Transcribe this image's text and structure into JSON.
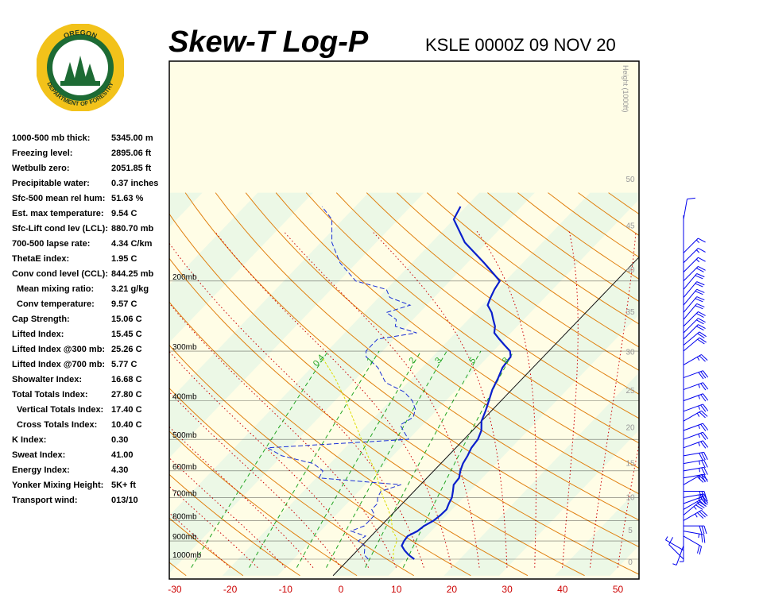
{
  "header": {
    "title": "Skew-T Log-P",
    "station": "KSLE 0000Z 09 NOV 20"
  },
  "logo": {
    "top_text": "OREGON",
    "bottom_text": "DEPARTMENT OF FORESTRY",
    "ring_color": "#f2c21a",
    "inner_color": "#1d6b34"
  },
  "stats": [
    {
      "label": "1000-500 mb thick:",
      "value": "5345.00 m",
      "indent": false
    },
    {
      "label": "Freezing level:",
      "value": "2895.06 ft",
      "indent": false
    },
    {
      "label": "Wetbulb zero:",
      "value": "2051.85 ft",
      "indent": false
    },
    {
      "label": "Precipitable water:",
      "value": "0.37 inches",
      "indent": false
    },
    {
      "label": "Sfc-500 mean rel hum:",
      "value": "51.63 %",
      "indent": false
    },
    {
      "label": "Est. max temperature:",
      "value": "9.54 C",
      "indent": false
    },
    {
      "label": "Sfc-Lift cond lev (LCL):",
      "value": "880.70 mb",
      "indent": false
    },
    {
      "label": "700-500 lapse rate:",
      "value": "4.34 C/km",
      "indent": false
    },
    {
      "label": "ThetaE index:",
      "value": "1.95 C",
      "indent": false
    },
    {
      "label": "Conv cond level (CCL):",
      "value": "844.25 mb",
      "indent": false
    },
    {
      "label": "Mean mixing ratio:",
      "value": "3.21 g/kg",
      "indent": true
    },
    {
      "label": "Conv temperature:",
      "value": "9.57 C",
      "indent": true
    },
    {
      "label": "Cap Strength:",
      "value": "15.06 C",
      "indent": false
    },
    {
      "label": "Lifted Index:",
      "value": "15.45 C",
      "indent": false
    },
    {
      "label": "Lifted Index @300 mb:",
      "value": "25.26 C",
      "indent": false
    },
    {
      "label": "Lifted Index @700 mb:",
      "value": "5.77 C",
      "indent": false
    },
    {
      "label": "Showalter Index:",
      "value": "16.68 C",
      "indent": false
    },
    {
      "label": "Total Totals Index:",
      "value": "27.80 C",
      "indent": false
    },
    {
      "label": "Vertical Totals Index:",
      "value": "17.40 C",
      "indent": true
    },
    {
      "label": "Cross Totals Index:",
      "value": "10.40 C",
      "indent": true
    },
    {
      "label": "K Index:",
      "value": "0.30",
      "indent": false
    },
    {
      "label": "Sweat Index:",
      "value": "41.00",
      "indent": false
    },
    {
      "label": "Energy Index:",
      "value": "4.30",
      "indent": false
    },
    {
      "label": "Yonker Mixing Height:",
      "value": "5K+ ft",
      "indent": false
    },
    {
      "label": "Transport wind:",
      "value": "013/10",
      "indent": false
    }
  ],
  "chart_data": {
    "type": "line",
    "title": "Skew-T Log-P",
    "xlabel": "",
    "ylabel": "",
    "x_ticks": [
      "-30",
      "-20",
      "-10",
      "0",
      "10",
      "20",
      "30",
      "40",
      "50"
    ],
    "x_tick_color": "#cc0000",
    "pressure_labels": [
      "200mb",
      "300mb",
      "400mb",
      "500mb",
      "600mb",
      "700mb",
      "800mb",
      "900mb",
      "1000mb"
    ],
    "height_axis_title": "Height (1000ft)",
    "height_ticks": [
      "0",
      "5",
      "10",
      "15",
      "20",
      "25",
      "30",
      "35",
      "40",
      "45",
      "50"
    ],
    "mixing_ratio_labels": [
      "0.4",
      "1",
      "2",
      "3",
      "5",
      "8"
    ],
    "colors": {
      "temperature": "#0a1fcc",
      "dewpoint": "#1a2fd6",
      "parcel": "#dddd00",
      "dry_adiabat": "#e08010",
      "moist_adiabat": "#cc0000",
      "mixing_ratio": "#22a522",
      "isobar": "#000000",
      "wind_barb": "#0000ee",
      "band_a": "#fffde6",
      "band_b": "#ecf8e6"
    },
    "series": [
      {
        "key": "temperature",
        "points": [
          [
            11.8,
            1000
          ],
          [
            10,
            975
          ],
          [
            8.5,
            950
          ],
          [
            7.2,
            925
          ],
          [
            6.8,
            900
          ],
          [
            6.6,
            875
          ],
          [
            7.5,
            850
          ],
          [
            7.8,
            825
          ],
          [
            8.6,
            800
          ],
          [
            8.9,
            775
          ],
          [
            9.0,
            750
          ],
          [
            8.4,
            725
          ],
          [
            7.9,
            700
          ],
          [
            7.0,
            675
          ],
          [
            6.0,
            650
          ],
          [
            5.8,
            625
          ],
          [
            4.8,
            600
          ],
          [
            4.0,
            575
          ],
          [
            3.5,
            550
          ],
          [
            2.8,
            525
          ],
          [
            2.5,
            500
          ],
          [
            1.6,
            475
          ],
          [
            0,
            450
          ],
          [
            -1.0,
            425
          ],
          [
            -2.2,
            400
          ],
          [
            -3.5,
            375
          ],
          [
            -4.5,
            350
          ],
          [
            -5.5,
            330
          ],
          [
            -5.9,
            310
          ],
          [
            -7.0,
            300
          ],
          [
            -9.0,
            290
          ],
          [
            -11.0,
            280
          ],
          [
            -13.0,
            270
          ],
          [
            -14.0,
            260
          ],
          [
            -15.5,
            250
          ],
          [
            -17.0,
            240
          ],
          [
            -19.0,
            230
          ],
          [
            -19.8,
            220
          ],
          [
            -20.5,
            210
          ],
          [
            -21.0,
            200
          ],
          [
            -27.0,
            180
          ],
          [
            -34.0,
            160
          ],
          [
            -40.0,
            140
          ],
          [
            -41.0,
            130
          ]
        ]
      },
      {
        "key": "dewpoint",
        "points": [
          [
            3.5,
            1000
          ],
          [
            2.0,
            975
          ],
          [
            1.3,
            950
          ],
          [
            0.5,
            925
          ],
          [
            -1.5,
            900
          ],
          [
            -1.0,
            875
          ],
          [
            -4.5,
            850
          ],
          [
            -3.0,
            825
          ],
          [
            -3.0,
            800
          ],
          [
            -3.0,
            775
          ],
          [
            -4.5,
            750
          ],
          [
            -4.5,
            725
          ],
          [
            -5.5,
            700
          ],
          [
            -6.0,
            675
          ],
          [
            -3.5,
            650
          ],
          [
            -19.5,
            625
          ],
          [
            -20.0,
            600
          ],
          [
            -23.0,
            575
          ],
          [
            -30.0,
            550
          ],
          [
            -34.0,
            525
          ],
          [
            -15.0,
            505
          ],
          [
            -10.0,
            500
          ],
          [
            -11.0,
            490
          ],
          [
            -12.0,
            480
          ],
          [
            -14.0,
            460
          ],
          [
            -13.0,
            440
          ],
          [
            -14.0,
            420
          ],
          [
            -16.0,
            400
          ],
          [
            -19.0,
            380
          ],
          [
            -24.0,
            360
          ],
          [
            -28.0,
            330
          ],
          [
            -32.0,
            310
          ],
          [
            -33.0,
            300
          ],
          [
            -33.0,
            280
          ],
          [
            -27.0,
            270
          ],
          [
            -32.0,
            260
          ],
          [
            -33.0,
            250
          ],
          [
            -36.0,
            240
          ],
          [
            -33.0,
            230
          ],
          [
            -38.0,
            220
          ],
          [
            -40.0,
            210
          ],
          [
            -47.0,
            200
          ],
          [
            -53.0,
            180
          ],
          [
            -58.0,
            160
          ],
          [
            -62.0,
            140
          ],
          [
            -66.0,
            130
          ]
        ]
      },
      {
        "key": "parcel",
        "points": [
          [
            8.0,
            1000
          ],
          [
            6.5,
            950
          ],
          [
            5.5,
            900
          ],
          [
            4.7,
            880
          ],
          [
            3.0,
            850
          ],
          [
            1.0,
            800
          ],
          [
            -1.5,
            750
          ],
          [
            -4.5,
            700
          ],
          [
            -7.5,
            650
          ],
          [
            -10.5,
            600
          ],
          [
            -14.5,
            550
          ],
          [
            -18.5,
            500
          ],
          [
            -23.0,
            450
          ],
          [
            -28.0,
            400
          ],
          [
            -34.0,
            350
          ],
          [
            -40.0,
            310
          ]
        ]
      }
    ],
    "wind_barbs": [
      {
        "pressure": 1000,
        "direction": 315,
        "speed": 10
      },
      {
        "pressure": 950,
        "direction": 300,
        "speed": 5
      },
      {
        "pressure": 925,
        "direction": 200,
        "speed": 5
      },
      {
        "pressure": 900,
        "direction": 180,
        "speed": 5
      },
      {
        "pressure": 875,
        "direction": 120,
        "speed": 20
      },
      {
        "pressure": 850,
        "direction": 100,
        "speed": 25
      },
      {
        "pressure": 825,
        "direction": 90,
        "speed": 30
      },
      {
        "pressure": 800,
        "direction": 60,
        "speed": 35
      },
      {
        "pressure": 775,
        "direction": 50,
        "speed": 35
      },
      {
        "pressure": 750,
        "direction": 60,
        "speed": 25
      },
      {
        "pressure": 725,
        "direction": 70,
        "speed": 25
      },
      {
        "pressure": 700,
        "direction": 80,
        "speed": 25
      },
      {
        "pressure": 675,
        "direction": 90,
        "speed": 30
      },
      {
        "pressure": 650,
        "direction": 60,
        "speed": 30
      },
      {
        "pressure": 625,
        "direction": 80,
        "speed": 25
      },
      {
        "pressure": 600,
        "direction": 80,
        "speed": 25
      },
      {
        "pressure": 575,
        "direction": 80,
        "speed": 25
      },
      {
        "pressure": 550,
        "direction": 80,
        "speed": 30
      },
      {
        "pressure": 525,
        "direction": 70,
        "speed": 25
      },
      {
        "pressure": 500,
        "direction": 70,
        "speed": 25
      },
      {
        "pressure": 475,
        "direction": 70,
        "speed": 25
      },
      {
        "pressure": 450,
        "direction": 60,
        "speed": 25
      },
      {
        "pressure": 425,
        "direction": 70,
        "speed": 25
      },
      {
        "pressure": 400,
        "direction": 70,
        "speed": 25
      },
      {
        "pressure": 375,
        "direction": 70,
        "speed": 25
      },
      {
        "pressure": 350,
        "direction": 70,
        "speed": 30
      },
      {
        "pressure": 325,
        "direction": 60,
        "speed": 25
      },
      {
        "pressure": 300,
        "direction": 50,
        "speed": 20
      },
      {
        "pressure": 290,
        "direction": 50,
        "speed": 20
      },
      {
        "pressure": 280,
        "direction": 45,
        "speed": 20
      },
      {
        "pressure": 270,
        "direction": 45,
        "speed": 20
      },
      {
        "pressure": 260,
        "direction": 45,
        "speed": 20
      },
      {
        "pressure": 250,
        "direction": 40,
        "speed": 20
      },
      {
        "pressure": 240,
        "direction": 40,
        "speed": 20
      },
      {
        "pressure": 230,
        "direction": 40,
        "speed": 20
      },
      {
        "pressure": 220,
        "direction": 40,
        "speed": 20
      },
      {
        "pressure": 210,
        "direction": 40,
        "speed": 20
      },
      {
        "pressure": 200,
        "direction": 45,
        "speed": 20
      },
      {
        "pressure": 190,
        "direction": 45,
        "speed": 15
      },
      {
        "pressure": 180,
        "direction": 45,
        "speed": 15
      },
      {
        "pressure": 170,
        "direction": 45,
        "speed": 15
      },
      {
        "pressure": 140,
        "direction": 10,
        "speed": 10
      }
    ],
    "xlim": [
      -35,
      50
    ],
    "pressure_range": [
      1050,
      125
    ],
    "grid": true
  }
}
